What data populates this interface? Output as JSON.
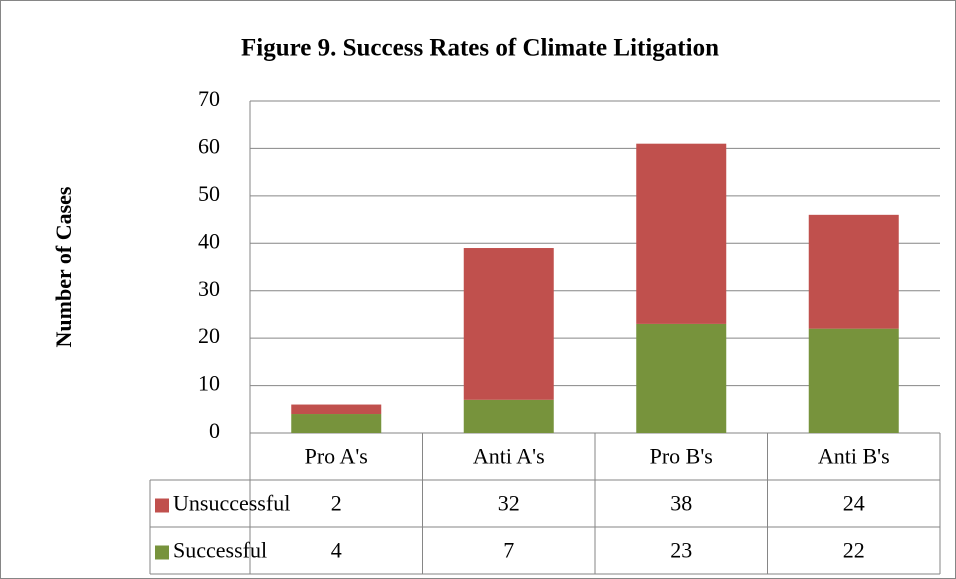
{
  "chart_data": {
    "type": "stacked_bar",
    "title": "Figure 9. Success Rates of Climate Litigation",
    "y_label": "Number of Cases",
    "categories": [
      "Pro A's",
      "Anti A's",
      "Pro B's",
      "Anti B's"
    ],
    "series": [
      {
        "name": "Successful",
        "color": "#77933c",
        "values": [
          4,
          7,
          23,
          22
        ]
      },
      {
        "name": "Unsuccessful",
        "color": "#c0504d",
        "values": [
          2,
          32,
          38,
          24
        ]
      }
    ],
    "ylim": [
      0,
      70
    ],
    "yticks": [
      0,
      10,
      20,
      30,
      40,
      50,
      60,
      70
    ],
    "grid": true,
    "data_table": true
  }
}
